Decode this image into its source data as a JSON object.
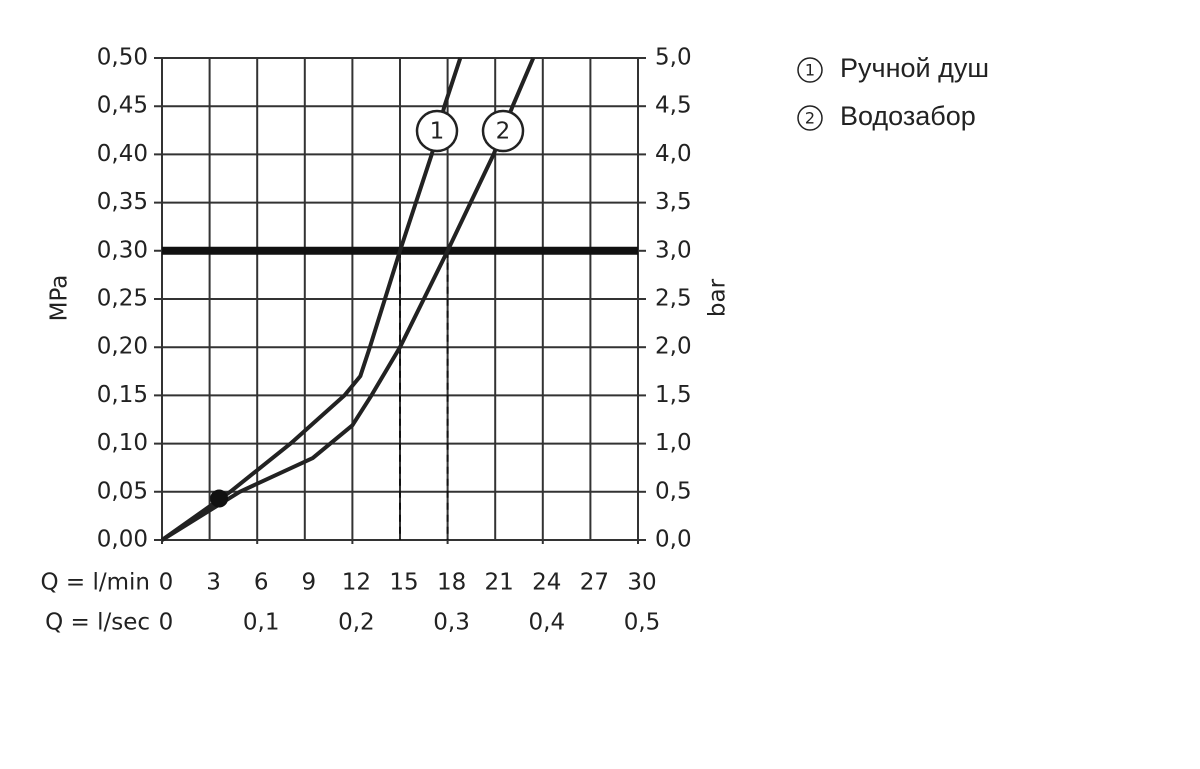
{
  "chart_data": {
    "type": "line",
    "ylabel": "MPa",
    "y2label": "bar",
    "xlabel": "Q = l/min",
    "x2label": "Q = l/sec",
    "xlim": [
      0,
      30
    ],
    "xticks": [
      0,
      3,
      6,
      9,
      12,
      15,
      18,
      21,
      24,
      27,
      30
    ],
    "x2lim": [
      0,
      0.5
    ],
    "x2ticks": [
      0,
      {
        "value": 0.1,
        "label": "0,1"
      },
      {
        "value": 0.2,
        "label": "0,2"
      },
      {
        "value": 0.3,
        "label": "0,3"
      },
      {
        "value": 0.4,
        "label": "0,4"
      },
      {
        "value": 0.5,
        "label": "0,5"
      }
    ],
    "ylim": [
      0,
      0.5
    ],
    "yticks": [
      {
        "value": 0,
        "label": "0,00"
      },
      {
        "value": 0.05,
        "label": "0,05"
      },
      {
        "value": 0.1,
        "label": "0,10"
      },
      {
        "value": 0.15,
        "label": "0,15"
      },
      {
        "value": 0.2,
        "label": "0,20"
      },
      {
        "value": 0.25,
        "label": "0,25"
      },
      {
        "value": 0.3,
        "label": "0,30"
      },
      {
        "value": 0.35,
        "label": "0,35"
      },
      {
        "value": 0.4,
        "label": "0,40"
      },
      {
        "value": 0.45,
        "label": "0,45"
      },
      {
        "value": 0.5,
        "label": "0,50"
      }
    ],
    "y2lim": [
      0,
      5
    ],
    "y2ticks": [
      {
        "value": 0,
        "label": "0,0"
      },
      {
        "value": 0.5,
        "label": "0,5"
      },
      {
        "value": 1,
        "label": "1,0"
      },
      {
        "value": 1.5,
        "label": "1,5"
      },
      {
        "value": 2,
        "label": "2,0"
      },
      {
        "value": 2.5,
        "label": "2,5"
      },
      {
        "value": 3,
        "label": "3,0"
      },
      {
        "value": 3.5,
        "label": "3,5"
      },
      {
        "value": 4,
        "label": "4,0"
      },
      {
        "value": 4.5,
        "label": "4,5"
      },
      {
        "value": 5,
        "label": "5,0"
      }
    ],
    "grid": true,
    "color": "#222222",
    "hline": 0.3,
    "vlines": [
      15,
      18
    ],
    "point": {
      "x": 3.6,
      "y": 0.043
    },
    "series": [
      {
        "name": "Ручной душ",
        "label": "1",
        "x": [
          0,
          4.3,
          8.1,
          11.5,
          12.5,
          13.1,
          15,
          17,
          17.8,
          18.8
        ],
        "values": [
          0,
          0.05,
          0.1,
          0.15,
          0.17,
          0.2,
          0.3,
          0.4,
          0.45,
          0.5
        ]
      },
      {
        "name": "Водозабор",
        "label": "2",
        "x": [
          0,
          4.9,
          9.5,
          12,
          13.2,
          15,
          18,
          20.9,
          22.1,
          23.4
        ],
        "values": [
          0,
          0.05,
          0.085,
          0.119,
          0.15,
          0.2,
          0.3,
          0.4,
          0.45,
          0.5
        ]
      }
    ]
  }
}
